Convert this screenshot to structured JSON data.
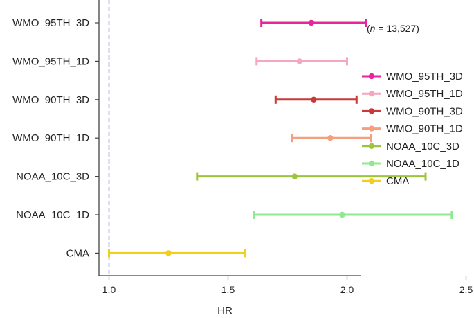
{
  "chart_data": {
    "type": "scatter",
    "subtype": "forest-plot",
    "title": "",
    "xlabel": "HR",
    "ylabel": "",
    "xlim": [
      0.93,
      2.54
    ],
    "xticks": [
      1.0,
      1.5,
      2.0,
      2.5
    ],
    "xtick_labels": [
      "1.0",
      "1.5",
      "2.0",
      "2.5"
    ],
    "reference_line": 1.0,
    "annotation_prefix": "(",
    "annotation_n": "n",
    "annotation_value": " = 13,527)",
    "grid": false,
    "legend_position": "right",
    "series": [
      {
        "name": "WMO_95TH_3D",
        "estimate": 1.85,
        "lower": 1.64,
        "upper": 2.08,
        "color": "#e8259a"
      },
      {
        "name": "WMO_95TH_1D",
        "estimate": 1.8,
        "lower": 1.62,
        "upper": 2.0,
        "color": "#f6a6be"
      },
      {
        "name": "WMO_90TH_3D",
        "estimate": 1.86,
        "lower": 1.7,
        "upper": 2.04,
        "color": "#c93939"
      },
      {
        "name": "WMO_90TH_1D",
        "estimate": 1.93,
        "lower": 1.77,
        "upper": 2.1,
        "color": "#f4a07e"
      },
      {
        "name": "NOAA_10C_3D",
        "estimate": 1.78,
        "lower": 1.37,
        "upper": 2.33,
        "color": "#9dc53c"
      },
      {
        "name": "NOAA_10C_1D",
        "estimate": 1.98,
        "lower": 1.61,
        "upper": 2.44,
        "color": "#90e892"
      },
      {
        "name": "CMA",
        "estimate": 1.25,
        "lower": 1.0,
        "upper": 1.57,
        "color": "#f2cf1b"
      }
    ]
  }
}
